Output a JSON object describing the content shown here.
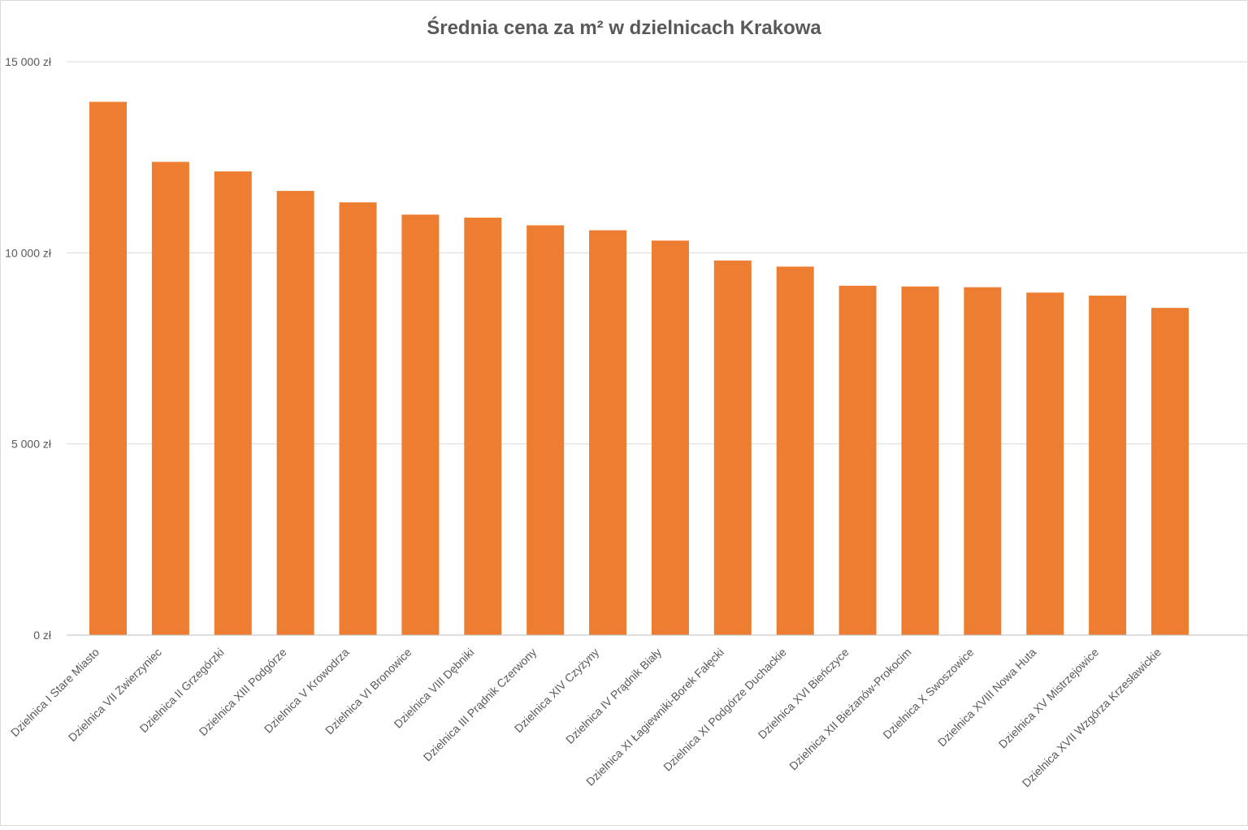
{
  "chart_data": {
    "type": "bar",
    "title": "Średnia cena za m² w dzielnicach Krakowa",
    "xlabel": "",
    "ylabel": "",
    "ylim": [
      0,
      15000
    ],
    "yticks": [
      0,
      5000,
      10000,
      15000
    ],
    "ytick_labels": [
      "0 zł",
      "5 000 zł",
      "10 000 zł",
      "15 000 zł"
    ],
    "grid": true,
    "legend": "none",
    "bar_color": "#ED7D31",
    "categories": [
      "Dzielnica I Stare Miasto",
      "Dzielnica VII Zwierzyniec",
      "Dzielnica II Grzegórzki",
      "Dzielnica XIII Podgórze",
      "Dzielnica V Krowodrza",
      "Dzielnica VI Bronowice",
      "Dzielnica VIII Dębniki",
      "Dzielnica III Prądnik Czerwony",
      "Dzielnica XIV Czyżyny",
      "Dzielnica IV Prądnik Biały",
      "Dzielnica XI Łagiewniki-Borek Fałęcki",
      "Dzielnica XI Podgórze Duchackie",
      "Dzielnica XVI Bieńczyce",
      "Dzielnica XII Bieżanów-Prokocim",
      "Dzielnica X Swoszowice",
      "Dzielnica XVIII Nowa Huta",
      "Dzielnica XV Mistrzejowice",
      "Dzielnica XVII Wzgórza Krzesławickie"
    ],
    "values": [
      13950,
      12380,
      12130,
      11620,
      11320,
      11000,
      10920,
      10720,
      10590,
      10320,
      9800,
      9640,
      9140,
      9120,
      9100,
      8960,
      8880,
      8560
    ]
  }
}
